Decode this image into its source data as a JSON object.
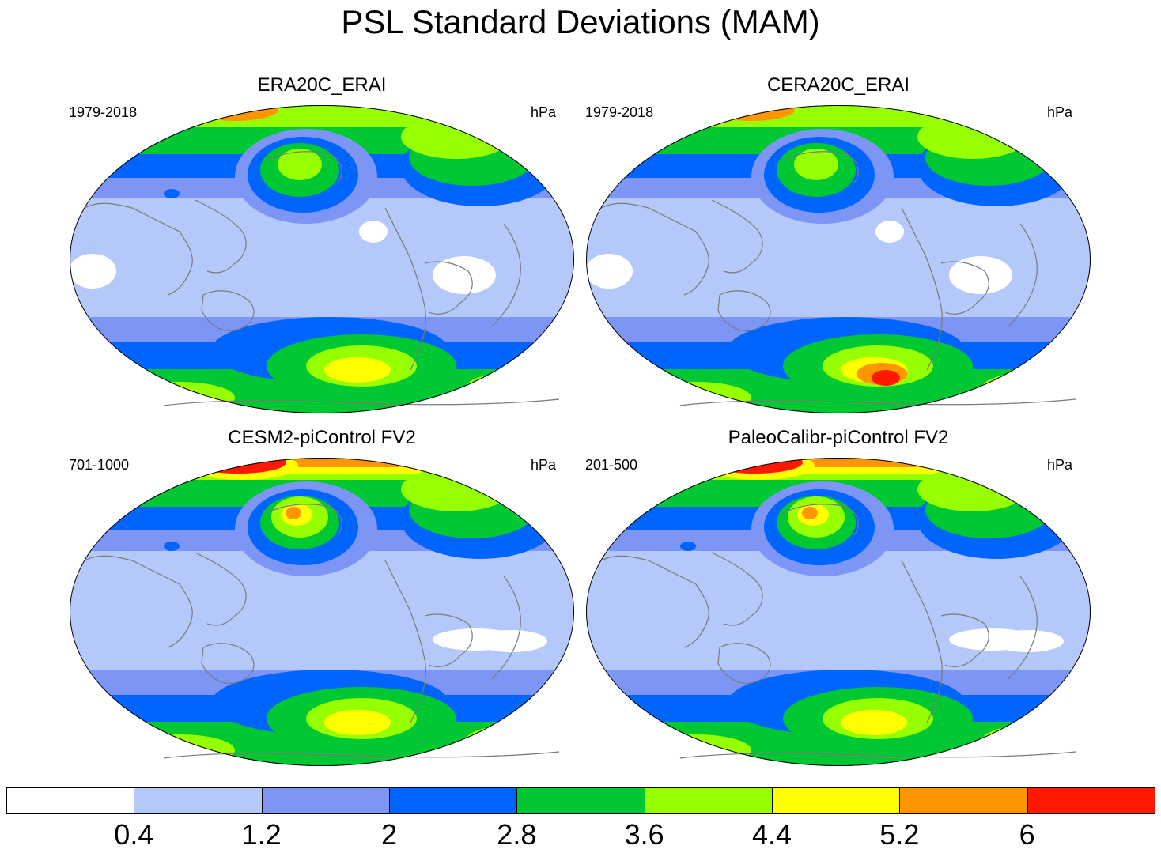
{
  "title": "PSL Standard Deviations (MAM)",
  "panels": [
    {
      "title": "ERA20C_ERAI",
      "left_label": "1979-2018",
      "right_label": "hPa",
      "variant": "era20c"
    },
    {
      "title": "CERA20C_ERAI",
      "left_label": "1979-2018",
      "right_label": "hPa",
      "variant": "cera20c"
    },
    {
      "title": "CESM2-piControl FV2",
      "left_label": "701-1000",
      "right_label": "hPa",
      "variant": "cesm2"
    },
    {
      "title": "PaleoCalibr-piControl FV2",
      "left_label": "201-500",
      "right_label": "hPa",
      "variant": "paleo"
    }
  ],
  "colorbar": {
    "levels": [
      "0.4",
      "1.2",
      "2",
      "2.8",
      "3.6",
      "4.4",
      "5.2",
      "6"
    ],
    "colors": [
      "#ffffff",
      "#b4c8fa",
      "#7d96f5",
      "#0064ff",
      "#00c832",
      "#96ff00",
      "#ffff00",
      "#ff9600",
      "#ff1900"
    ]
  }
}
